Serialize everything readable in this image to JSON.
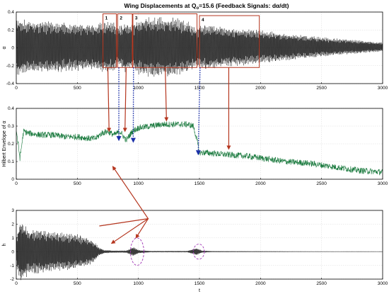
{
  "chart_data": [
    {
      "type": "line",
      "title": "Wing Displacements at Q",
      "title_sub": "o",
      "title_rest": "=15.6 (Feedback Signals: dα/dt)",
      "ylabel": "α",
      "xlabel": "",
      "xlim": [
        0,
        3000
      ],
      "ylim": [
        -0.4,
        0.4
      ],
      "xticks": [
        "0",
        "500",
        "1000",
        "1500",
        "2000",
        "2500",
        "3000"
      ],
      "yticks": [
        "-0.4",
        "-0.2",
        "0",
        "0.2",
        "0.4"
      ],
      "color": "#000000",
      "grid": true,
      "envelope": {
        "t": [
          0,
          100,
          300,
          500,
          650,
          700,
          760,
          800,
          830,
          870,
          900,
          950,
          1000,
          1100,
          1200,
          1300,
          1400,
          1480,
          1550,
          1700,
          2000,
          2500,
          3000
        ],
        "amp": [
          0.33,
          0.3,
          0.29,
          0.27,
          0.26,
          0.28,
          0.3,
          0.28,
          0.22,
          0.26,
          0.3,
          0.25,
          0.32,
          0.34,
          0.34,
          0.33,
          0.3,
          0.22,
          0.26,
          0.23,
          0.19,
          0.11,
          0.05
        ]
      },
      "annotations": [
        {
          "label": "1",
          "x": [
            710,
            820
          ],
          "y": [
            -0.22,
            0.38
          ]
        },
        {
          "label": "2",
          "x": [
            830,
            950
          ],
          "y": [
            -0.22,
            0.38
          ]
        },
        {
          "label": "3",
          "x": [
            955,
            1480
          ],
          "y": [
            -0.22,
            0.38
          ]
        },
        {
          "label": "4",
          "x": [
            1500,
            1990
          ],
          "y": [
            -0.22,
            0.36
          ]
        }
      ]
    },
    {
      "type": "line",
      "ylabel": "Hilbert Envelope of α",
      "xlabel": "",
      "xlim": [
        0,
        3000
      ],
      "ylim": [
        0,
        0.4
      ],
      "xticks": [
        "0",
        "500",
        "1000",
        "1500",
        "2000",
        "2500",
        "3000"
      ],
      "yticks": [
        "0",
        "0.1",
        "0.2",
        "0.3",
        "0.4"
      ],
      "color": "#1a7a3e",
      "grid": true,
      "series": {
        "t": [
          0,
          30,
          60,
          100,
          200,
          300,
          400,
          500,
          600,
          650,
          700,
          750,
          800,
          850,
          900,
          950,
          1000,
          1100,
          1200,
          1300,
          1400,
          1450,
          1480,
          1500,
          1550,
          1700,
          1900,
          2000,
          2200,
          2400,
          2600,
          2800,
          3000
        ],
        "value": [
          0.28,
          0.12,
          0.27,
          0.26,
          0.25,
          0.25,
          0.24,
          0.24,
          0.23,
          0.23,
          0.26,
          0.27,
          0.25,
          0.27,
          0.22,
          0.27,
          0.29,
          0.3,
          0.31,
          0.31,
          0.31,
          0.3,
          0.22,
          0.15,
          0.15,
          0.14,
          0.13,
          0.12,
          0.1,
          0.09,
          0.07,
          0.05,
          0.04
        ]
      }
    },
    {
      "type": "line",
      "ylabel": "h",
      "xlabel": "t",
      "xlim": [
        0,
        3000
      ],
      "ylim": [
        -2,
        3
      ],
      "xticks": [
        "0",
        "500",
        "1000",
        "1500",
        "2000",
        "2500",
        "3000"
      ],
      "yticks": [
        "-2",
        "-1",
        "0",
        "1",
        "2",
        "3"
      ],
      "color": "#000000",
      "grid": true,
      "envelope": {
        "t": [
          0,
          30,
          100,
          300,
          500,
          620,
          680,
          720,
          800,
          900,
          960,
          1000,
          1100,
          1400,
          1480,
          1520,
          1600,
          2000,
          2500,
          3000
        ],
        "amp": [
          1.0,
          2.4,
          1.7,
          1.5,
          1.3,
          0.9,
          0.3,
          0.12,
          0.08,
          0.08,
          0.35,
          0.12,
          0.05,
          0.05,
          0.28,
          0.08,
          0.04,
          0.03,
          0.02,
          0.02
        ]
      },
      "ellipses": [
        {
          "x": 990,
          "y": 0,
          "rx": 55,
          "ry": 1.0
        },
        {
          "x": 1495,
          "y": 0,
          "rx": 45,
          "ry": 0.55
        }
      ]
    }
  ],
  "arrows": {
    "solid_color": "#b5361f",
    "dotted_color": "#1a2fa8"
  }
}
